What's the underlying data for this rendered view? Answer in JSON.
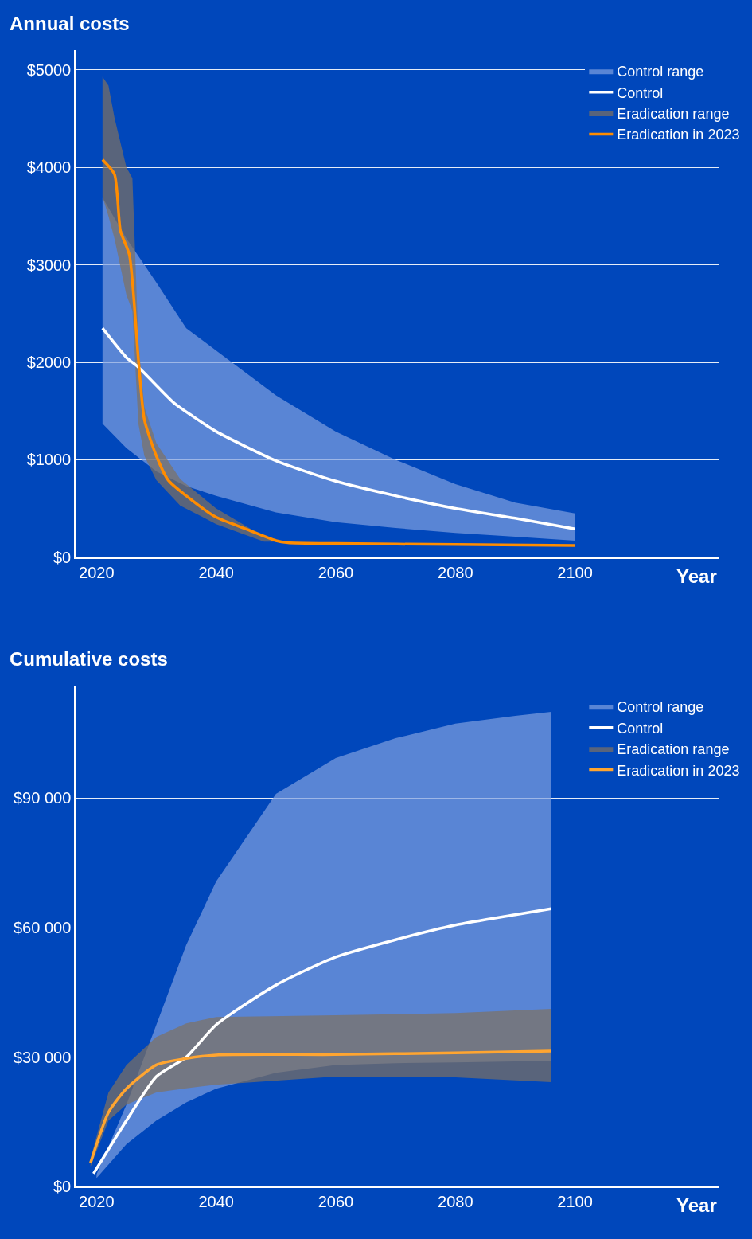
{
  "chart_data": [
    {
      "type": "line",
      "title": "Annual costs",
      "xlabel": "Year",
      "xlim": [
        2016.5,
        2124
      ],
      "xticks": [
        2020,
        2040,
        2060,
        2080,
        2100
      ],
      "ylim": [
        0,
        5200
      ],
      "yticks": [
        {
          "value": 0,
          "label": "$0"
        },
        {
          "value": 1000,
          "label": "$1000"
        },
        {
          "value": 2000,
          "label": "$2000"
        },
        {
          "value": 3000,
          "label": "$3000"
        },
        {
          "value": 4000,
          "label": "$4000"
        },
        {
          "value": 5000,
          "label": "$5000"
        }
      ],
      "grid": "y",
      "legend": "top right",
      "marker": "none",
      "line_style": "solid",
      "series": [
        {
          "name": "Control range",
          "type": "area",
          "color": "#7fa0e0",
          "x": [
            2021,
            2025,
            2030,
            2035,
            2040,
            2050,
            2060,
            2070,
            2080,
            2090,
            2100
          ],
          "values": [
            null,
            null,
            null,
            null,
            null,
            null,
            null,
            null,
            null,
            null,
            null
          ],
          "upper": [
            3690,
            3270,
            2820,
            2350,
            2120,
            1660,
            1290,
            1000,
            750,
            560,
            450
          ],
          "lower": [
            1370,
            1120,
            880,
            730,
            630,
            460,
            360,
            300,
            250,
            210,
            170
          ]
        },
        {
          "name": "Control",
          "color": "#ffffff",
          "x": [
            2021,
            2025,
            2027,
            2033,
            2036,
            2040,
            2050,
            2060,
            2070,
            2080,
            2090,
            2100
          ],
          "values": [
            2350,
            2050,
            1950,
            1580,
            1450,
            1290,
            990,
            780,
            630,
            500,
            400,
            290
          ]
        },
        {
          "name": "Eradication range",
          "type": "area",
          "color": "#7f7060",
          "x": [
            2021,
            2022,
            2023,
            2025,
            2026,
            2027,
            2028,
            2030,
            2034,
            2040,
            2048,
            2050
          ],
          "values": [
            null,
            null,
            null,
            null,
            null,
            null,
            null,
            null,
            null,
            null,
            null,
            null
          ],
          "upper": [
            4930,
            4840,
            4510,
            4000,
            3890,
            2200,
            1540,
            1170,
            800,
            500,
            210,
            190
          ],
          "lower": [
            3700,
            3500,
            3270,
            2690,
            2530,
            1370,
            1040,
            790,
            530,
            340,
            160,
            160
          ]
        },
        {
          "name": "Eradication in 2023",
          "color": "#ff8c00",
          "x": [
            2021,
            2023,
            2024,
            2025.5,
            2027,
            2028,
            2030,
            2032,
            2035,
            2040,
            2045,
            2050,
            2052,
            2060,
            2080,
            2100
          ],
          "values": [
            4080,
            3930,
            3350,
            3100,
            2030,
            1410,
            1040,
            790,
            630,
            410,
            290,
            170,
            150,
            140,
            130,
            120
          ]
        }
      ]
    },
    {
      "type": "line",
      "title": "Cumulative costs",
      "xlabel": "Year",
      "xlim": [
        2016.5,
        2124
      ],
      "xticks": [
        2020,
        2040,
        2060,
        2080,
        2100
      ],
      "ylim": [
        0,
        116000
      ],
      "yticks": [
        {
          "value": 0,
          "label": "$0"
        },
        {
          "value": 30000,
          "label": "$30 000"
        },
        {
          "value": 60000,
          "label": "$60 000"
        },
        {
          "value": 90000,
          "label": "$90 000"
        }
      ],
      "grid": "y",
      "legend": "top right",
      "marker": "none",
      "line_style": "solid",
      "series": [
        {
          "name": "Control range",
          "type": "area",
          "color": "#7fa0e0",
          "x": [
            2020,
            2025,
            2030,
            2035,
            2040,
            2050,
            2060,
            2070,
            2080,
            2090,
            2096
          ],
          "values": [
            null,
            null,
            null,
            null,
            null,
            null,
            null,
            null,
            null,
            null,
            null
          ],
          "upper": [
            2800,
            19000,
            37500,
            56000,
            70700,
            91000,
            99300,
            103900,
            107300,
            109100,
            110000
          ],
          "lower": [
            2000,
            9800,
            15300,
            19500,
            22700,
            26400,
            28200,
            28600,
            28800,
            29000,
            29200
          ]
        },
        {
          "name": "Control",
          "color": "#ffffff",
          "x": [
            2019.5,
            2025,
            2030,
            2035,
            2040,
            2050,
            2060,
            2070,
            2080,
            2090,
            2096
          ],
          "values": [
            3000,
            15300,
            25500,
            30000,
            37500,
            46700,
            53200,
            57200,
            60600,
            63000,
            64400
          ]
        },
        {
          "name": "Eradication range",
          "type": "area",
          "color": "#7f7060",
          "x": [
            2019,
            2022,
            2025,
            2030,
            2035,
            2040,
            2060,
            2080,
            2096
          ],
          "values": [
            null,
            null,
            null,
            null,
            null,
            null,
            null,
            null,
            null
          ],
          "upper": [
            6500,
            21800,
            28200,
            34700,
            37800,
            39300,
            39700,
            40200,
            41200
          ],
          "lower": [
            4600,
            15300,
            19000,
            21800,
            22800,
            23600,
            25500,
            25300,
            24200
          ]
        },
        {
          "name": "Eradication in 2023",
          "color": "#ffa530",
          "x": [
            2019,
            2022,
            2025,
            2030,
            2035,
            2040,
            2060,
            2080,
            2096
          ],
          "values": [
            5500,
            17200,
            22700,
            28200,
            29700,
            30500,
            30600,
            31000,
            31400
          ]
        }
      ]
    }
  ]
}
